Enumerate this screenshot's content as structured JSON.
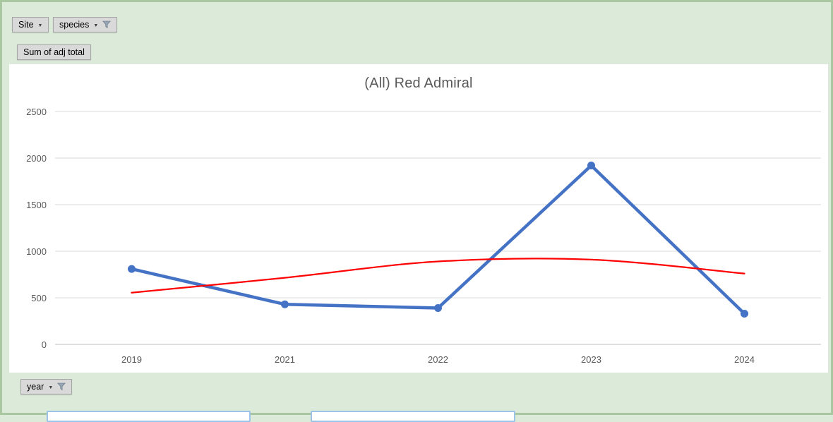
{
  "colors": {
    "page_background": "#dcead9",
    "page_border": "#a9c7a1",
    "panel_background": "#ffffff",
    "button_background": "#d9d9d9",
    "button_border": "#a6a6a6",
    "gridline": "#d9d9d9",
    "axis_line": "#bfbfbf",
    "axis_text": "#595959",
    "series_blue": "#4472c4",
    "trendline_red": "#ff0000",
    "slicer_border": "#9dc3e6"
  },
  "icons": {
    "dropdown_arrow": "▼"
  },
  "field_buttons": {
    "site": {
      "label": "Site"
    },
    "species": {
      "label": "species"
    },
    "value": {
      "label": "Sum of adj total"
    },
    "year": {
      "label": "year"
    }
  },
  "chart_data": {
    "type": "line",
    "title": "(All) Red Admiral",
    "categories": [
      "2019",
      "2021",
      "2022",
      "2023",
      "2024"
    ],
    "series": [
      {
        "name": "Sum of adj total",
        "kind": "line",
        "color": "#4472c4",
        "width": 4.5,
        "markers": true,
        "smooth": false,
        "values": [
          810,
          430,
          390,
          1920,
          330
        ]
      },
      {
        "name": "trendline",
        "kind": "trendline",
        "color": "#ff0000",
        "width": 2.25,
        "markers": false,
        "smooth": true,
        "values": [
          555,
          715,
          890,
          910,
          760
        ]
      }
    ],
    "ylim": [
      0,
      2500
    ],
    "yticks": [
      0,
      500,
      1000,
      1500,
      2000,
      2500
    ],
    "grid": true,
    "legend": "none"
  }
}
